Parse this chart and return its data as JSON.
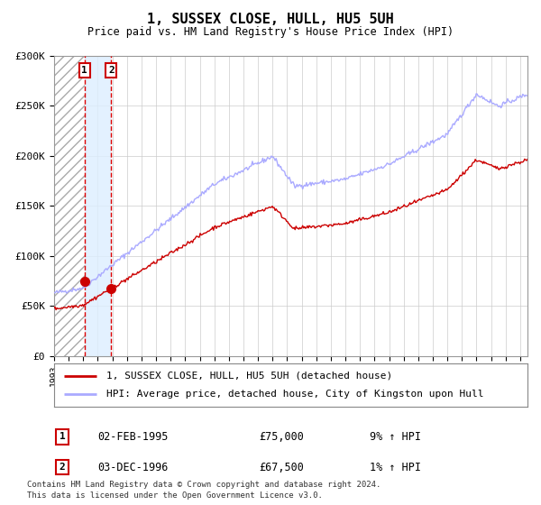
{
  "title": "1, SUSSEX CLOSE, HULL, HU5 5UH",
  "subtitle": "Price paid vs. HM Land Registry's House Price Index (HPI)",
  "legend_line1": "1, SUSSEX CLOSE, HULL, HU5 5UH (detached house)",
  "legend_line2": "HPI: Average price, detached house, City of Kingston upon Hull",
  "footer1": "Contains HM Land Registry data © Crown copyright and database right 2024.",
  "footer2": "This data is licensed under the Open Government Licence v3.0.",
  "sale1_label": "1",
  "sale1_date": "02-FEB-1995",
  "sale1_price": "£75,000",
  "sale1_hpi": "9% ↑ HPI",
  "sale2_label": "2",
  "sale2_date": "03-DEC-1996",
  "sale2_price": "£67,500",
  "sale2_hpi": "1% ↑ HPI",
  "sale1_year": 1995.09,
  "sale1_value": 75000,
  "sale2_year": 1996.92,
  "sale2_value": 67500,
  "hpi_line_color": "#aaaaff",
  "price_line_color": "#cc0000",
  "dot_color": "#cc0000",
  "vline_color": "#dd0000",
  "shade_color": "#ddeeff",
  "ylim": [
    0,
    300000
  ],
  "yticks": [
    0,
    50000,
    100000,
    150000,
    200000,
    250000,
    300000
  ],
  "ytick_labels": [
    "£0",
    "£50K",
    "£100K",
    "£150K",
    "£200K",
    "£250K",
    "£300K"
  ],
  "xstart": 1993,
  "xend": 2025.5
}
